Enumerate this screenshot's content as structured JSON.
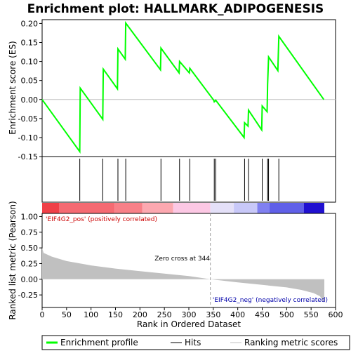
{
  "chart_data": {
    "type": "line",
    "title": "Enrichment plot: HALLMARK_ADIPOGENESIS",
    "xlabel": "Rank in Ordered Dataset",
    "xlim": [
      0,
      600
    ],
    "x_ticks": [
      0,
      50,
      100,
      150,
      200,
      250,
      300,
      350,
      400,
      450,
      500,
      550,
      600
    ],
    "es_panel": {
      "ylabel": "Enrichment score (ES)",
      "ylim": [
        -0.15,
        0.21
      ],
      "y_ticks": [
        -0.15,
        -0.1,
        -0.05,
        0.0,
        0.05,
        0.1,
        0.15,
        0.2
      ],
      "line_color": "#00ff00",
      "points": [
        [
          0,
          0.0
        ],
        [
          77,
          -0.137
        ],
        [
          78,
          0.03
        ],
        [
          124,
          -0.052
        ],
        [
          125,
          0.08
        ],
        [
          154,
          0.028
        ],
        [
          155,
          0.133
        ],
        [
          170,
          0.106
        ],
        [
          171,
          0.201
        ],
        [
          242,
          0.078
        ],
        [
          243,
          0.135
        ],
        [
          280,
          0.07
        ],
        [
          281,
          0.1
        ],
        [
          301,
          0.07
        ],
        [
          302,
          0.082
        ],
        [
          351,
          -0.002
        ],
        [
          352,
          -0.006
        ],
        [
          355,
          -0.002
        ],
        [
          413,
          -0.1
        ],
        [
          414,
          -0.061
        ],
        [
          421,
          -0.07
        ],
        [
          422,
          -0.028
        ],
        [
          449,
          -0.08
        ],
        [
          450,
          -0.017
        ],
        [
          460,
          -0.032
        ],
        [
          461,
          0.04
        ],
        [
          463,
          0.112
        ],
        [
          482,
          0.076
        ],
        [
          484,
          0.166
        ],
        [
          576,
          0.0
        ]
      ]
    },
    "hits": [
      77,
      124,
      155,
      171,
      243,
      281,
      302,
      352,
      355,
      414,
      422,
      450,
      461,
      463,
      484
    ],
    "gradient_bar": {
      "left_color": "#ff0000",
      "right_color": "#0000ff",
      "segments": [
        {
          "end": 35,
          "color": "#f04048"
        },
        {
          "end": 148,
          "color": "#f56a72"
        },
        {
          "end": 205,
          "color": "#f88088"
        },
        {
          "end": 268,
          "color": "#fca8b0"
        },
        {
          "end": 344,
          "color": "#fcc8e4"
        },
        {
          "end": 392,
          "color": "#e4e0f8"
        },
        {
          "end": 440,
          "color": "#c8c8f8"
        },
        {
          "end": 465,
          "color": "#8080f0"
        },
        {
          "end": 535,
          "color": "#6060e8"
        },
        {
          "end": 577,
          "color": "#2010d0"
        }
      ]
    },
    "metric_panel": {
      "ylabel": "Ranked list metric (Pearson)",
      "ylim": [
        -0.45,
        1.05
      ],
      "y_ticks": [
        -0.25,
        0.0,
        0.25,
        0.5,
        0.75,
        1.0
      ],
      "fill_color": "#c0c0c0",
      "profile": [
        [
          0,
          0.5
        ],
        [
          3,
          0.42
        ],
        [
          20,
          0.36
        ],
        [
          50,
          0.29
        ],
        [
          100,
          0.22
        ],
        [
          150,
          0.17
        ],
        [
          200,
          0.13
        ],
        [
          250,
          0.09
        ],
        [
          300,
          0.05
        ],
        [
          344,
          0.0
        ],
        [
          400,
          -0.05
        ],
        [
          450,
          -0.09
        ],
        [
          500,
          -0.13
        ],
        [
          530,
          -0.17
        ],
        [
          555,
          -0.22
        ],
        [
          568,
          -0.27
        ],
        [
          573,
          -0.33
        ],
        [
          577,
          -0.38
        ]
      ],
      "zero_cross_rank": 344,
      "zero_cross_label": "Zero cross at 344",
      "pos_label": "'EIF4G2_pos' (positively correlated)",
      "neg_label": "'EIF4G2_neg' (negatively correlated)"
    },
    "legend": {
      "position": "bottom",
      "items": [
        {
          "label": "Enrichment profile",
          "color": "#00ff00"
        },
        {
          "label": "Hits",
          "color": "#000000"
        },
        {
          "label": "Ranking metric scores",
          "color": "#c0c0c0"
        }
      ]
    }
  }
}
